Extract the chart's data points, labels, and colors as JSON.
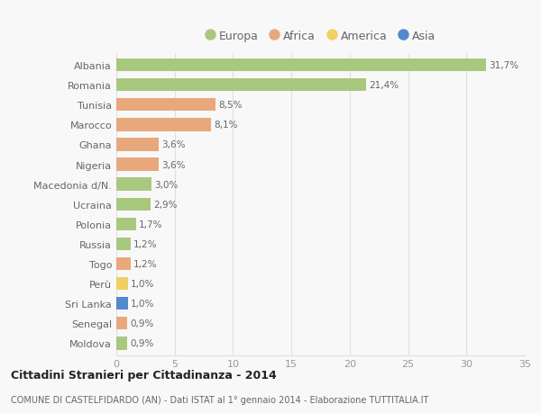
{
  "countries": [
    "Albania",
    "Romania",
    "Tunisia",
    "Marocco",
    "Ghana",
    "Nigeria",
    "Macedonia d/N.",
    "Ucraina",
    "Polonia",
    "Russia",
    "Togo",
    "Perù",
    "Sri Lanka",
    "Senegal",
    "Moldova"
  ],
  "values": [
    31.7,
    21.4,
    8.5,
    8.1,
    3.6,
    3.6,
    3.0,
    2.9,
    1.7,
    1.2,
    1.2,
    1.0,
    1.0,
    0.9,
    0.9
  ],
  "labels": [
    "31,7%",
    "21,4%",
    "8,5%",
    "8,1%",
    "3,6%",
    "3,6%",
    "3,0%",
    "2,9%",
    "1,7%",
    "1,2%",
    "1,2%",
    "1,0%",
    "1,0%",
    "0,9%",
    "0,9%"
  ],
  "continents": [
    "Europa",
    "Europa",
    "Africa",
    "Africa",
    "Africa",
    "Africa",
    "Europa",
    "Europa",
    "Europa",
    "Europa",
    "Africa",
    "America",
    "Asia",
    "Africa",
    "Europa"
  ],
  "colors": {
    "Europa": "#a8c87e",
    "Africa": "#e8a87c",
    "America": "#f0d060",
    "Asia": "#5588cc"
  },
  "legend_order": [
    "Europa",
    "Africa",
    "America",
    "Asia"
  ],
  "title": "Cittadini Stranieri per Cittadinanza - 2014",
  "subtitle": "COMUNE DI CASTELFIDARDO (AN) - Dati ISTAT al 1° gennaio 2014 - Elaborazione TUTTITALIA.IT",
  "xlim": [
    0,
    35
  ],
  "xticks": [
    0,
    5,
    10,
    15,
    20,
    25,
    30,
    35
  ],
  "background_color": "#f8f8f8",
  "grid_color": "#e0e0e0",
  "bar_height": 0.65,
  "label_color": "#666666",
  "tick_color": "#999999"
}
